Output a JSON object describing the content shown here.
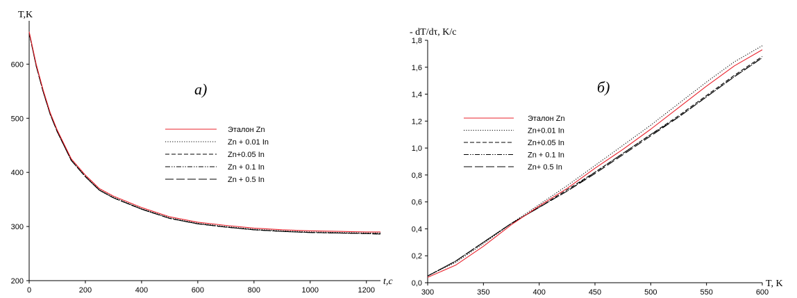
{
  "chart_data": [
    {
      "type": "line",
      "panel_label": "а)",
      "xlabel": "t,c",
      "ylabel": "T,K",
      "xlim": [
        0,
        1250
      ],
      "ylim": [
        200,
        680
      ],
      "x_ticks": [
        "0",
        "200",
        "400",
        "600",
        "800",
        "1000",
        "1200"
      ],
      "y_ticks": [
        "200",
        "300",
        "400",
        "500",
        "600"
      ],
      "legend_position": "center-right",
      "x": [
        0,
        25,
        50,
        75,
        100,
        150,
        200,
        250,
        300,
        400,
        500,
        600,
        700,
        800,
        900,
        1000,
        1100,
        1200,
        1250
      ],
      "series": [
        {
          "name": "Эталон Zn",
          "color": "#e8202a",
          "dash": "solid",
          "values": [
            660,
            600,
            552,
            510,
            478,
            425,
            395,
            370,
            356,
            335,
            318,
            308,
            302,
            297,
            294,
            292,
            291,
            290,
            290
          ]
        },
        {
          "name": "Zn + 0.01 In",
          "color": "#000000",
          "dash": "dotted",
          "values": [
            659,
            598,
            550,
            508,
            476,
            423,
            393,
            368,
            354,
            333,
            316,
            306,
            300,
            295,
            292,
            290,
            289,
            288,
            288
          ]
        },
        {
          "name": "Zn+0.05 In",
          "color": "#000000",
          "dash": "dashed",
          "values": [
            658,
            597,
            549,
            507,
            475,
            422,
            392,
            367,
            353,
            332,
            315,
            305,
            299,
            294,
            291,
            289,
            288,
            287,
            287
          ]
        },
        {
          "name": "Zn + 0.1 In",
          "color": "#000000",
          "dash": "dashdotdot",
          "values": [
            658,
            597,
            549,
            507,
            475,
            422,
            392,
            367,
            353,
            332,
            315,
            305,
            299,
            294,
            291,
            289,
            288,
            287,
            286
          ]
        },
        {
          "name": "Zn + 0.5 In",
          "color": "#000000",
          "dash": "longdash",
          "values": [
            658,
            597,
            549,
            507,
            475,
            422,
            392,
            367,
            353,
            332,
            315,
            305,
            299,
            294,
            291,
            289,
            288,
            287,
            286
          ]
        }
      ]
    },
    {
      "type": "line",
      "panel_label": "б)",
      "xlabel": "T, K",
      "ylabel": "- dT/dτ, K/c",
      "xlim": [
        300,
        600
      ],
      "ylim": [
        0,
        1.8
      ],
      "x_ticks": [
        "300",
        "350",
        "400",
        "450",
        "500",
        "550",
        "600"
      ],
      "y_ticks": [
        "0,0",
        "0,2",
        "0,4",
        "0,6",
        "0,8",
        "1,0",
        "1,2",
        "1,4",
        "1,6",
        "1,8"
      ],
      "legend_position": "left",
      "x": [
        300,
        325,
        350,
        375,
        400,
        425,
        450,
        475,
        500,
        525,
        550,
        575,
        600
      ],
      "series": [
        {
          "name": "Эталон Zn",
          "color": "#e8202a",
          "dash": "solid",
          "values": [
            0.04,
            0.13,
            0.27,
            0.43,
            0.57,
            0.7,
            0.85,
            0.99,
            1.14,
            1.3,
            1.46,
            1.61,
            1.73
          ]
        },
        {
          "name": "Zn+0.01 In",
          "color": "#000000",
          "dash": "dotted",
          "values": [
            0.05,
            0.15,
            0.29,
            0.44,
            0.58,
            0.72,
            0.87,
            1.02,
            1.17,
            1.33,
            1.49,
            1.64,
            1.76
          ]
        },
        {
          "name": "Zn+0.05 In",
          "color": "#000000",
          "dash": "dashed",
          "values": [
            0.05,
            0.16,
            0.3,
            0.44,
            0.56,
            0.69,
            0.82,
            0.96,
            1.1,
            1.24,
            1.39,
            1.54,
            1.68
          ]
        },
        {
          "name": "Zn + 0.1 In",
          "color": "#000000",
          "dash": "dashdotdot",
          "values": [
            0.05,
            0.16,
            0.3,
            0.44,
            0.56,
            0.68,
            0.82,
            0.96,
            1.1,
            1.23,
            1.38,
            1.53,
            1.67
          ]
        },
        {
          "name": "Zn+ 0.5 In",
          "color": "#000000",
          "dash": "longdash",
          "values": [
            0.05,
            0.16,
            0.3,
            0.44,
            0.56,
            0.68,
            0.81,
            0.95,
            1.09,
            1.23,
            1.38,
            1.53,
            1.67
          ]
        }
      ]
    }
  ]
}
